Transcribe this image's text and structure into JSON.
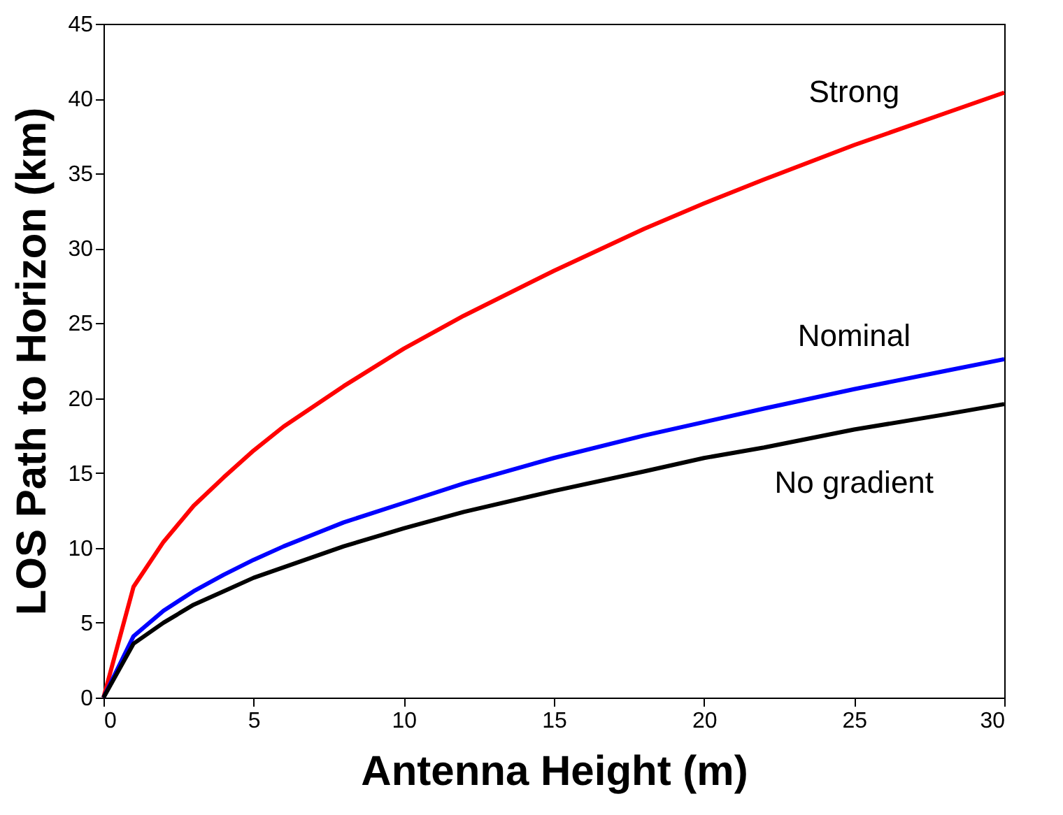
{
  "chart_data": {
    "type": "line",
    "xlabel": "Antenna Height (m)",
    "ylabel": "LOS Path to Horizon (km)",
    "x": [
      0,
      1,
      2,
      3,
      4,
      5,
      6,
      8,
      10,
      12,
      15,
      18,
      20,
      22,
      25,
      28,
      30
    ],
    "series": [
      {
        "name": "Strong",
        "color": "#ff0000",
        "values": [
          0,
          7.4,
          10.4,
          12.8,
          14.7,
          16.5,
          18.1,
          20.8,
          23.3,
          25.5,
          28.5,
          31.3,
          33.0,
          34.6,
          36.9,
          39.0,
          40.4
        ]
      },
      {
        "name": "Nominal",
        "color": "#0000ff",
        "values": [
          0,
          4.1,
          5.8,
          7.1,
          8.2,
          9.2,
          10.1,
          11.7,
          13.0,
          14.3,
          16.0,
          17.5,
          18.4,
          19.3,
          20.6,
          21.8,
          22.6
        ]
      },
      {
        "name": "No gradient",
        "color": "#000000",
        "values": [
          0,
          3.6,
          5.0,
          6.2,
          7.1,
          8.0,
          8.7,
          10.1,
          11.3,
          12.4,
          13.8,
          15.1,
          16.0,
          16.7,
          17.9,
          18.9,
          19.6
        ]
      }
    ],
    "xlim": [
      0,
      30
    ],
    "xticks": [
      0,
      5,
      10,
      15,
      20,
      25,
      30
    ],
    "ylim": [
      0,
      45
    ],
    "yticks": [
      0,
      5,
      10,
      15,
      20,
      25,
      30,
      35,
      40,
      45
    ],
    "grid": false,
    "legend": false,
    "marker": "none",
    "line_style": "solid"
  }
}
